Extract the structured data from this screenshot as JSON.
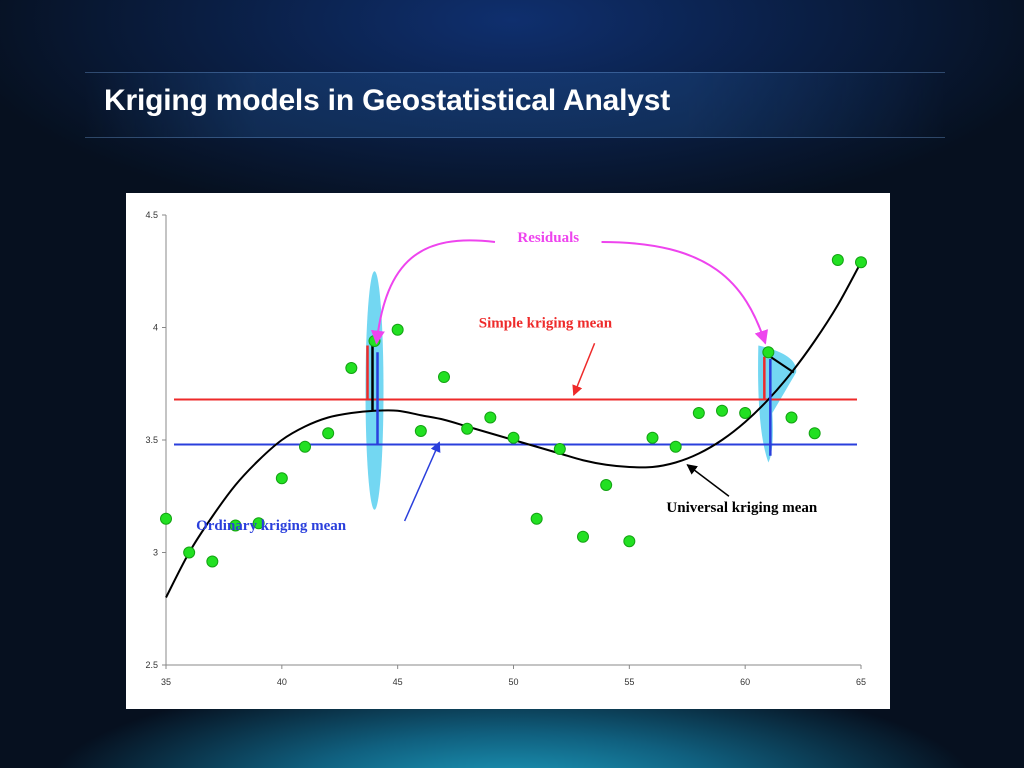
{
  "slide": {
    "title": "Kriging models in Geostatistical Analyst"
  },
  "chart_data": {
    "type": "scatter",
    "x_range": [
      35,
      65
    ],
    "y_range": [
      2.5,
      4.5
    ],
    "x_ticks": [
      "35",
      "40",
      "45",
      "50",
      "55",
      "60",
      "65"
    ],
    "y_ticks": [
      "2.5",
      "3",
      "3.5",
      "4",
      "4.5"
    ],
    "grid": false,
    "points": [
      {
        "x": 35,
        "y": 3.15
      },
      {
        "x": 36,
        "y": 3.0
      },
      {
        "x": 37,
        "y": 2.96
      },
      {
        "x": 38,
        "y": 3.12
      },
      {
        "x": 39,
        "y": 3.13
      },
      {
        "x": 40,
        "y": 3.33
      },
      {
        "x": 41,
        "y": 3.47
      },
      {
        "x": 42,
        "y": 3.53
      },
      {
        "x": 43,
        "y": 3.82
      },
      {
        "x": 44,
        "y": 3.94
      },
      {
        "x": 45,
        "y": 3.99
      },
      {
        "x": 46,
        "y": 3.54
      },
      {
        "x": 47,
        "y": 3.78
      },
      {
        "x": 48,
        "y": 3.55
      },
      {
        "x": 49,
        "y": 3.6
      },
      {
        "x": 50,
        "y": 3.51
      },
      {
        "x": 51,
        "y": 3.15
      },
      {
        "x": 52,
        "y": 3.46
      },
      {
        "x": 53,
        "y": 3.07
      },
      {
        "x": 54,
        "y": 3.3
      },
      {
        "x": 55,
        "y": 3.05
      },
      {
        "x": 56,
        "y": 3.51
      },
      {
        "x": 57,
        "y": 3.47
      },
      {
        "x": 58,
        "y": 3.62
      },
      {
        "x": 59,
        "y": 3.63
      },
      {
        "x": 60,
        "y": 3.62
      },
      {
        "x": 61,
        "y": 3.89
      },
      {
        "x": 62,
        "y": 3.6
      },
      {
        "x": 63,
        "y": 3.53
      },
      {
        "x": 64,
        "y": 4.3
      },
      {
        "x": 65,
        "y": 4.29
      }
    ],
    "simple_kriging_mean": 3.68,
    "ordinary_kriging_mean": 3.48,
    "universal_kriging_mean_curve": [
      {
        "x": 35,
        "y": 2.8
      },
      {
        "x": 36,
        "y": 3.0
      },
      {
        "x": 37,
        "y": 3.16
      },
      {
        "x": 38,
        "y": 3.3
      },
      {
        "x": 39,
        "y": 3.41
      },
      {
        "x": 40,
        "y": 3.5
      },
      {
        "x": 41,
        "y": 3.56
      },
      {
        "x": 42,
        "y": 3.6
      },
      {
        "x": 43,
        "y": 3.62
      },
      {
        "x": 44,
        "y": 3.63
      },
      {
        "x": 45,
        "y": 3.63
      },
      {
        "x": 46,
        "y": 3.61
      },
      {
        "x": 47,
        "y": 3.59
      },
      {
        "x": 48,
        "y": 3.56
      },
      {
        "x": 49,
        "y": 3.53
      },
      {
        "x": 50,
        "y": 3.5
      },
      {
        "x": 51,
        "y": 3.47
      },
      {
        "x": 52,
        "y": 3.44
      },
      {
        "x": 53,
        "y": 3.41
      },
      {
        "x": 54,
        "y": 3.39
      },
      {
        "x": 55,
        "y": 3.38
      },
      {
        "x": 56,
        "y": 3.38
      },
      {
        "x": 57,
        "y": 3.4
      },
      {
        "x": 58,
        "y": 3.44
      },
      {
        "x": 59,
        "y": 3.5
      },
      {
        "x": 60,
        "y": 3.58
      },
      {
        "x": 61,
        "y": 3.68
      },
      {
        "x": 62,
        "y": 3.8
      },
      {
        "x": 63,
        "y": 3.94
      },
      {
        "x": 64,
        "y": 4.1
      },
      {
        "x": 65,
        "y": 4.29
      }
    ],
    "residual_points": [
      {
        "x": 44,
        "y": 3.94
      },
      {
        "x": 61,
        "y": 3.89
      }
    ],
    "annotations": {
      "residuals": "Residuals",
      "simple": "Simple kriging mean",
      "ordinary": "Ordinary kriging mean",
      "universal": "Universal kriging mean"
    },
    "colors": {
      "points": "#22e022",
      "point_stroke": "#13a313",
      "simple": "#ee2a2a",
      "ordinary": "#2a3fdc",
      "universal": "#000000",
      "residuals": "#ee44ee",
      "residual_shade": "#5ad0f0"
    }
  }
}
